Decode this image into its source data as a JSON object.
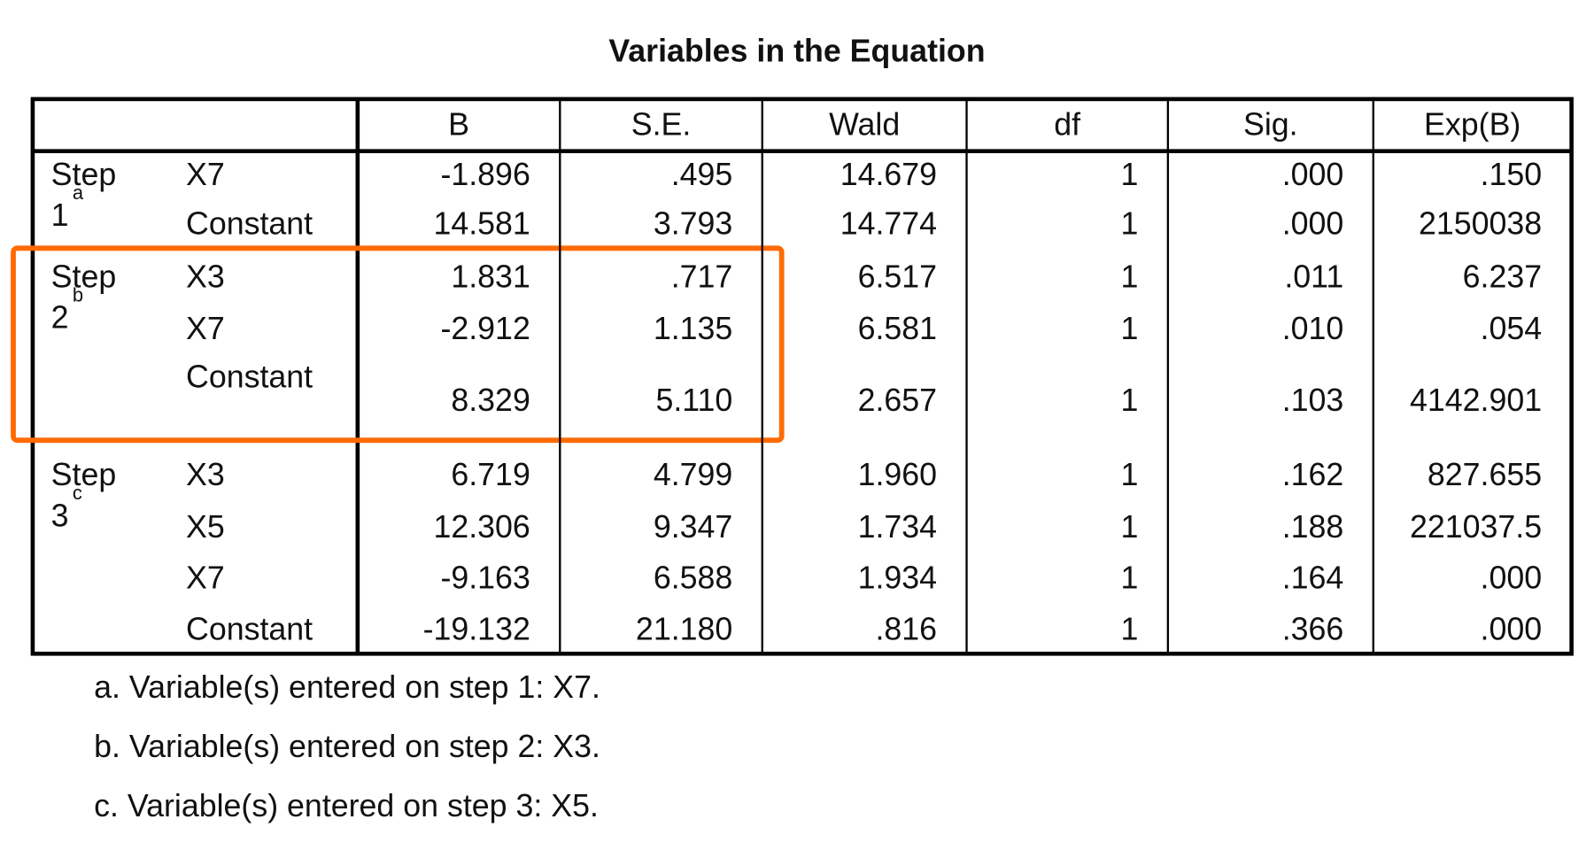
{
  "title": "Variables in the Equation",
  "table": {
    "columns": [
      "B",
      "S.E.",
      "Wald",
      "df",
      "Sig.",
      "Exp(B)"
    ],
    "groups": [
      {
        "step": "Step",
        "number": "1",
        "marker": "a",
        "rows": [
          {
            "variable": "X7",
            "cells": [
              "-1.896",
              ".495",
              "14.679",
              "1",
              ".000",
              ".150"
            ]
          },
          {
            "variable": "Constant",
            "cells": [
              "14.581",
              "3.793",
              "14.774",
              "1",
              ".000",
              "2150038"
            ]
          }
        ]
      },
      {
        "step": "Step",
        "number": "2",
        "marker": "b",
        "rows": [
          {
            "variable": "X3",
            "cells": [
              "1.831",
              ".717",
              "6.517",
              "1",
              ".011",
              "6.237"
            ]
          },
          {
            "variable": "X7",
            "cells": [
              "-2.912",
              "1.135",
              "6.581",
              "1",
              ".010",
              ".054"
            ]
          },
          {
            "variable": "Constant",
            "cells": [
              "8.329",
              "5.110",
              "2.657",
              "1",
              ".103",
              "4142.901"
            ]
          }
        ]
      },
      {
        "step": "Step",
        "number": "3",
        "marker": "c",
        "rows": [
          {
            "variable": "X3",
            "cells": [
              "6.719",
              "4.799",
              "1.960",
              "1",
              ".162",
              "827.655"
            ]
          },
          {
            "variable": "X5",
            "cells": [
              "12.306",
              "9.347",
              "1.734",
              "1",
              ".188",
              "221037.5"
            ]
          },
          {
            "variable": "X7",
            "cells": [
              "-9.163",
              "6.588",
              "1.934",
              "1",
              ".164",
              ".000"
            ]
          },
          {
            "variable": "Constant",
            "cells": [
              "-19.132",
              "21.180",
              ".816",
              "1",
              ".366",
              ".000"
            ]
          }
        ]
      }
    ]
  },
  "footnotes": [
    "a. Variable(s) entered on step 1: X7.",
    "b. Variable(s) entered on step 2: X3.",
    "c. Variable(s) entered on step 3: X5."
  ]
}
